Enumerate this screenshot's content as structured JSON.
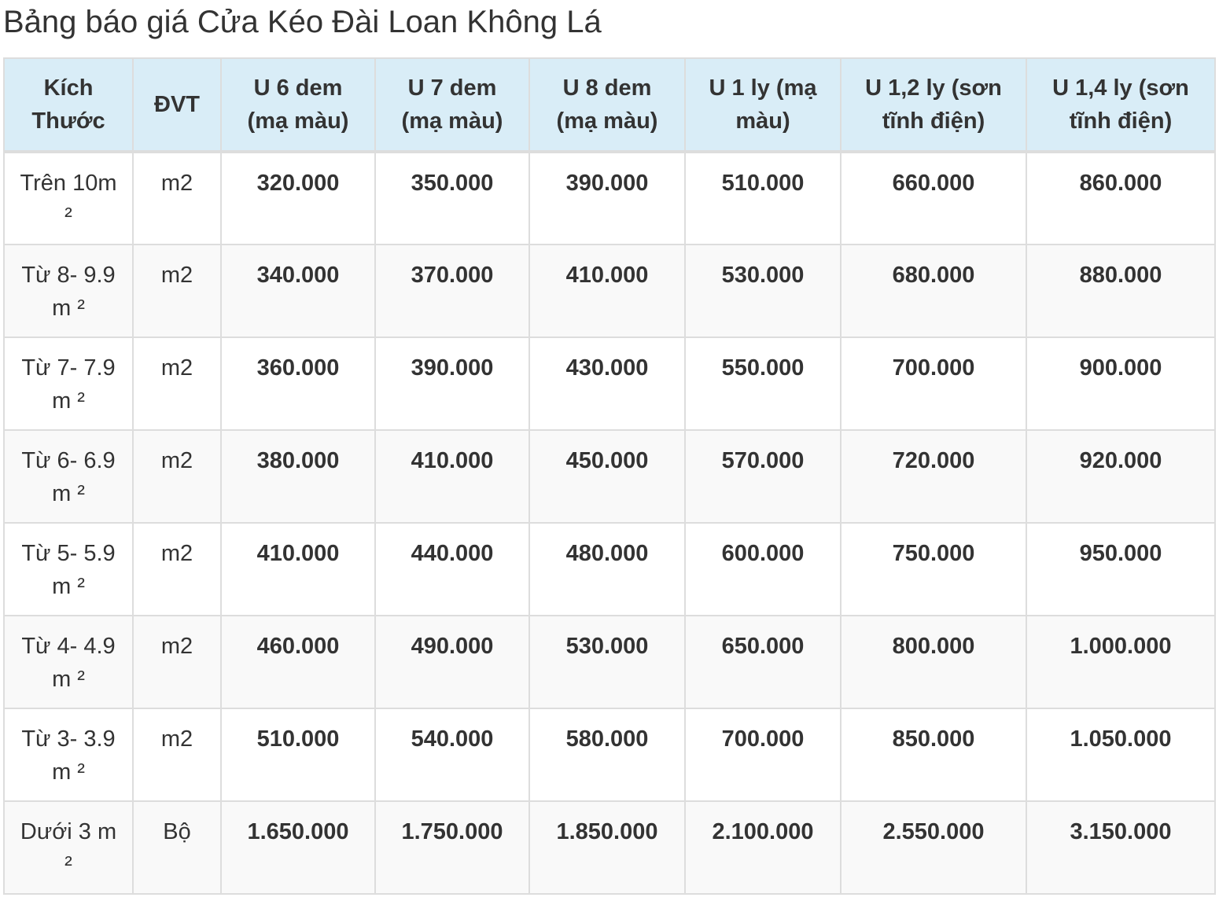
{
  "title": "Bảng báo giá Cửa Kéo Đài Loan Không Lá",
  "table": {
    "headers": [
      "Kích Thước",
      "ĐVT",
      "U 6 dem (mạ màu)",
      "U 7 dem (mạ màu)",
      "U 8 dem (mạ màu)",
      "U 1 ly (mạ màu)",
      "U 1,2 ly (sơn tĩnh điện)",
      "U 1,4 ly (sơn tĩnh điện)"
    ],
    "rows": [
      {
        "size": "Trên 10m ²",
        "unit": "m2",
        "prices": [
          "320.000",
          "350.000",
          "390.000",
          "510.000",
          "660.000",
          "860.000"
        ]
      },
      {
        "size": "Từ 8- 9.9 m ²",
        "unit": "m2",
        "prices": [
          "340.000",
          "370.000",
          "410.000",
          "530.000",
          "680.000",
          "880.000"
        ]
      },
      {
        "size": "Từ 7- 7.9 m ²",
        "unit": "m2",
        "prices": [
          "360.000",
          "390.000",
          "430.000",
          "550.000",
          "700.000",
          "900.000"
        ]
      },
      {
        "size": "Từ 6- 6.9 m ²",
        "unit": "m2",
        "prices": [
          "380.000",
          "410.000",
          "450.000",
          "570.000",
          "720.000",
          "920.000"
        ]
      },
      {
        "size": "Từ 5- 5.9 m ²",
        "unit": "m2",
        "prices": [
          "410.000",
          "440.000",
          "480.000",
          "600.000",
          "750.000",
          "950.000"
        ]
      },
      {
        "size": "Từ 4- 4.9 m ²",
        "unit": "m2",
        "prices": [
          "460.000",
          "490.000",
          "530.000",
          "650.000",
          "800.000",
          "1.000.000"
        ]
      },
      {
        "size": "Từ 3- 3.9 m ²",
        "unit": "m2",
        "prices": [
          "510.000",
          "540.000",
          "580.000",
          "700.000",
          "850.000",
          "1.050.000"
        ]
      },
      {
        "size": "Dưới 3 m ²",
        "unit": "Bộ",
        "prices": [
          "1.650.000",
          "1.750.000",
          "1.850.000",
          "2.100.000",
          "2.550.000",
          "3.150.000"
        ]
      }
    ]
  },
  "colors": {
    "header_bg": "#d9edf7",
    "border": "#dddddd",
    "stripe": "#f9f9f9",
    "text": "#333333"
  }
}
